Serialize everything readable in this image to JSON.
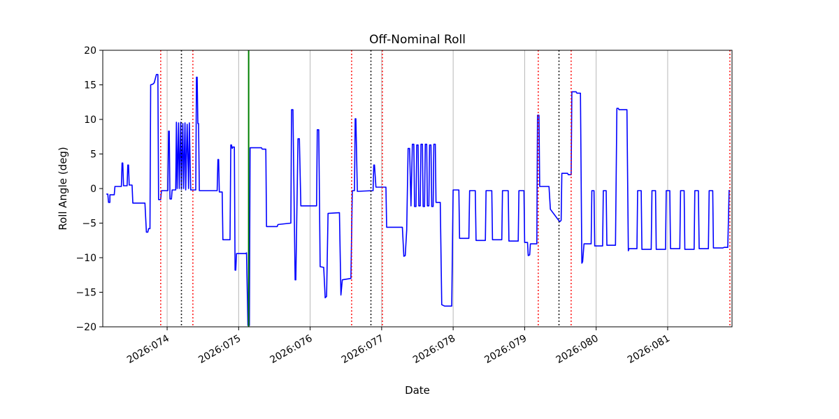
{
  "chart_data": {
    "type": "line",
    "title": "Off-Nominal Roll",
    "xlabel": "Date",
    "ylabel": "Roll Angle (deg)",
    "xlim": [
      73.1,
      81.9
    ],
    "ylim": [
      -20,
      20
    ],
    "grid": {
      "axis": "x",
      "color": "#b0b0b0"
    },
    "x_ticks": [
      {
        "value": 74,
        "label": "2026:074"
      },
      {
        "value": 75,
        "label": "2026:075"
      },
      {
        "value": 76,
        "label": "2026:076"
      },
      {
        "value": 77,
        "label": "2026:077"
      },
      {
        "value": 78,
        "label": "2026:078"
      },
      {
        "value": 79,
        "label": "2026:079"
      },
      {
        "value": 80,
        "label": "2026:080"
      },
      {
        "value": 81,
        "label": "2026:081"
      }
    ],
    "y_ticks": [
      {
        "value": -20,
        "label": "−20"
      },
      {
        "value": -15,
        "label": "−15"
      },
      {
        "value": -10,
        "label": "−10"
      },
      {
        "value": -5,
        "label": "−5"
      },
      {
        "value": 0,
        "label": "0"
      },
      {
        "value": 5,
        "label": "5"
      },
      {
        "value": 10,
        "label": "10"
      },
      {
        "value": 15,
        "label": "15"
      },
      {
        "value": 20,
        "label": "20"
      }
    ],
    "vlines": [
      {
        "x": 73.91,
        "color": "#ff0000",
        "style": "dotted",
        "name": "event-marker-red-1"
      },
      {
        "x": 74.2,
        "color": "#000000",
        "style": "dotted",
        "name": "event-marker-black-1"
      },
      {
        "x": 74.36,
        "color": "#ff0000",
        "style": "dotted",
        "name": "event-marker-red-2"
      },
      {
        "x": 75.14,
        "color": "#008000",
        "style": "solid",
        "name": "event-marker-green-1"
      },
      {
        "x": 76.58,
        "color": "#ff0000",
        "style": "dotted",
        "name": "event-marker-red-3"
      },
      {
        "x": 76.85,
        "color": "#000000",
        "style": "dotted",
        "name": "event-marker-black-2"
      },
      {
        "x": 77.01,
        "color": "#ff0000",
        "style": "dotted",
        "name": "event-marker-red-4"
      },
      {
        "x": 79.19,
        "color": "#ff0000",
        "style": "dotted",
        "name": "event-marker-red-5"
      },
      {
        "x": 79.48,
        "color": "#000000",
        "style": "dotted",
        "name": "event-marker-black-3"
      },
      {
        "x": 79.65,
        "color": "#ff0000",
        "style": "dotted",
        "name": "event-marker-red-6"
      },
      {
        "x": 81.87,
        "color": "#ff0000",
        "style": "dotted",
        "name": "event-marker-red-7"
      }
    ],
    "series": [
      {
        "name": "roll-angle",
        "color": "#0000ff",
        "style": "solid",
        "points": [
          [
            73.15,
            -0.8
          ],
          [
            73.17,
            -0.8
          ],
          [
            73.18,
            -2.0
          ],
          [
            73.2,
            -2.0
          ],
          [
            73.2,
            -0.9
          ],
          [
            73.26,
            -0.9
          ],
          [
            73.27,
            0.3
          ],
          [
            73.36,
            0.3
          ],
          [
            73.37,
            3.7
          ],
          [
            73.38,
            3.7
          ],
          [
            73.39,
            0.4
          ],
          [
            73.44,
            0.4
          ],
          [
            73.45,
            3.4
          ],
          [
            73.46,
            3.4
          ],
          [
            73.47,
            0.5
          ],
          [
            73.51,
            0.5
          ],
          [
            73.52,
            -2.1
          ],
          [
            73.69,
            -2.1
          ],
          [
            73.71,
            -6.3
          ],
          [
            73.73,
            -6.3
          ],
          [
            73.74,
            -5.8
          ],
          [
            73.76,
            -5.8
          ],
          [
            73.77,
            15.0
          ],
          [
            73.8,
            15.1
          ],
          [
            73.82,
            15.3
          ],
          [
            73.85,
            16.5
          ],
          [
            73.87,
            16.5
          ],
          [
            73.88,
            -1.6
          ],
          [
            73.91,
            -1.6
          ],
          [
            73.92,
            -0.3
          ],
          [
            74.01,
            -0.3
          ],
          [
            74.02,
            8.3
          ],
          [
            74.03,
            8.3
          ],
          [
            74.04,
            -1.5
          ],
          [
            74.06,
            -1.5
          ],
          [
            74.07,
            -0.2
          ],
          [
            74.12,
            -0.2
          ],
          [
            74.13,
            9.6
          ],
          [
            74.14,
            0.0
          ],
          [
            74.16,
            9.5
          ],
          [
            74.17,
            0.0
          ],
          [
            74.19,
            9.6
          ],
          [
            74.2,
            -0.1
          ],
          [
            74.22,
            9.4
          ],
          [
            74.23,
            0.0
          ],
          [
            74.25,
            9.5
          ],
          [
            74.26,
            -0.2
          ],
          [
            74.28,
            9.3
          ],
          [
            74.3,
            0.0
          ],
          [
            74.31,
            9.5
          ],
          [
            74.33,
            -0.2
          ],
          [
            74.4,
            -0.2
          ],
          [
            74.41,
            16.1
          ],
          [
            74.42,
            16.1
          ],
          [
            74.43,
            9.4
          ],
          [
            74.44,
            9.4
          ],
          [
            74.45,
            -0.3
          ],
          [
            74.7,
            -0.3
          ],
          [
            74.71,
            4.2
          ],
          [
            74.72,
            4.2
          ],
          [
            74.73,
            -0.5
          ],
          [
            74.77,
            -0.5
          ],
          [
            74.78,
            -7.4
          ],
          [
            74.88,
            -7.4
          ],
          [
            74.89,
            6.3
          ],
          [
            74.9,
            6.3
          ],
          [
            74.91,
            5.8
          ],
          [
            74.92,
            6.0
          ],
          [
            74.94,
            6.0
          ],
          [
            74.95,
            -11.8
          ],
          [
            74.96,
            -11.8
          ],
          [
            74.97,
            -9.4
          ],
          [
            75.1,
            -9.4
          ],
          [
            75.11,
            -9.3
          ],
          [
            75.13,
            -19.8
          ],
          [
            75.15,
            -19.8
          ],
          [
            75.16,
            5.9
          ],
          [
            75.32,
            5.9
          ],
          [
            75.33,
            5.7
          ],
          [
            75.38,
            5.7
          ],
          [
            75.39,
            -5.5
          ],
          [
            75.54,
            -5.5
          ],
          [
            75.55,
            -5.2
          ],
          [
            75.73,
            -5.0
          ],
          [
            75.74,
            11.4
          ],
          [
            75.76,
            11.4
          ],
          [
            75.79,
            -13.2
          ],
          [
            75.8,
            -13.2
          ],
          [
            75.83,
            7.2
          ],
          [
            75.85,
            7.2
          ],
          [
            75.87,
            -2.5
          ],
          [
            76.09,
            -2.5
          ],
          [
            76.1,
            8.5
          ],
          [
            76.12,
            8.5
          ],
          [
            76.14,
            -11.3
          ],
          [
            76.19,
            -11.4
          ],
          [
            76.21,
            -15.8
          ],
          [
            76.23,
            -15.6
          ],
          [
            76.25,
            -3.6
          ],
          [
            76.41,
            -3.5
          ],
          [
            76.43,
            -15.4
          ],
          [
            76.45,
            -13.2
          ],
          [
            76.57,
            -13.0
          ],
          [
            76.59,
            -0.3
          ],
          [
            76.62,
            -0.3
          ],
          [
            76.63,
            10.1
          ],
          [
            76.64,
            10.1
          ],
          [
            76.66,
            -0.4
          ],
          [
            76.88,
            -0.3
          ],
          [
            76.89,
            3.4
          ],
          [
            76.9,
            3.4
          ],
          [
            76.92,
            0.2
          ],
          [
            77.06,
            0.2
          ],
          [
            77.07,
            -5.6
          ],
          [
            77.29,
            -5.6
          ],
          [
            77.31,
            -9.8
          ],
          [
            77.33,
            -9.7
          ],
          [
            77.35,
            -6.0
          ],
          [
            77.37,
            5.8
          ],
          [
            77.39,
            5.8
          ],
          [
            77.41,
            -2.5
          ],
          [
            77.43,
            6.4
          ],
          [
            77.45,
            6.4
          ],
          [
            77.46,
            -2.6
          ],
          [
            77.48,
            -2.6
          ],
          [
            77.49,
            6.3
          ],
          [
            77.51,
            6.3
          ],
          [
            77.52,
            -2.5
          ],
          [
            77.54,
            -2.5
          ],
          [
            77.55,
            6.4
          ],
          [
            77.57,
            6.4
          ],
          [
            77.58,
            -2.6
          ],
          [
            77.6,
            -2.6
          ],
          [
            77.61,
            6.4
          ],
          [
            77.63,
            6.4
          ],
          [
            77.64,
            -2.5
          ],
          [
            77.66,
            -2.5
          ],
          [
            77.67,
            6.3
          ],
          [
            77.69,
            6.3
          ],
          [
            77.7,
            -2.6
          ],
          [
            77.72,
            -2.6
          ],
          [
            77.73,
            6.4
          ],
          [
            77.75,
            6.4
          ],
          [
            77.76,
            -2.0
          ],
          [
            77.82,
            -2.0
          ],
          [
            77.84,
            -16.8
          ],
          [
            77.88,
            -17.0
          ],
          [
            77.98,
            -17.0
          ],
          [
            78.0,
            -0.2
          ],
          [
            78.08,
            -0.2
          ],
          [
            78.09,
            -7.2
          ],
          [
            78.22,
            -7.2
          ],
          [
            78.23,
            -0.3
          ],
          [
            78.31,
            -0.3
          ],
          [
            78.32,
            -7.5
          ],
          [
            78.45,
            -7.5
          ],
          [
            78.46,
            -0.3
          ],
          [
            78.54,
            -0.3
          ],
          [
            78.55,
            -7.4
          ],
          [
            78.68,
            -7.4
          ],
          [
            78.69,
            -0.3
          ],
          [
            78.77,
            -0.3
          ],
          [
            78.78,
            -7.6
          ],
          [
            78.91,
            -7.6
          ],
          [
            78.92,
            -0.3
          ],
          [
            78.99,
            -0.3
          ],
          [
            79.0,
            -7.8
          ],
          [
            79.04,
            -7.8
          ],
          [
            79.05,
            -9.7
          ],
          [
            79.07,
            -9.6
          ],
          [
            79.08,
            -8.0
          ],
          [
            79.17,
            -8.0
          ],
          [
            79.18,
            10.6
          ],
          [
            79.2,
            10.6
          ],
          [
            79.21,
            0.3
          ],
          [
            79.34,
            0.3
          ],
          [
            79.36,
            -3.0
          ],
          [
            79.49,
            -4.8
          ],
          [
            79.51,
            -4.6
          ],
          [
            79.52,
            2.2
          ],
          [
            79.6,
            2.2
          ],
          [
            79.61,
            2.0
          ],
          [
            79.65,
            2.0
          ],
          [
            79.66,
            14.0
          ],
          [
            79.72,
            14.0
          ],
          [
            79.73,
            13.8
          ],
          [
            79.78,
            13.8
          ],
          [
            79.8,
            -10.8
          ],
          [
            79.81,
            -10.6
          ],
          [
            79.83,
            -8.0
          ],
          [
            79.93,
            -8.0
          ],
          [
            79.94,
            -0.3
          ],
          [
            79.97,
            -0.3
          ],
          [
            79.98,
            -8.3
          ],
          [
            80.09,
            -8.3
          ],
          [
            80.1,
            -0.3
          ],
          [
            80.14,
            -0.3
          ],
          [
            80.15,
            -8.2
          ],
          [
            80.27,
            -8.2
          ],
          [
            80.29,
            11.6
          ],
          [
            80.31,
            11.6
          ],
          [
            80.32,
            11.4
          ],
          [
            80.43,
            11.4
          ],
          [
            80.45,
            -9.0
          ],
          [
            80.46,
            -8.7
          ],
          [
            80.57,
            -8.7
          ],
          [
            80.58,
            -0.3
          ],
          [
            80.63,
            -0.3
          ],
          [
            80.64,
            -8.8
          ],
          [
            80.77,
            -8.8
          ],
          [
            80.78,
            -0.3
          ],
          [
            80.83,
            -0.3
          ],
          [
            80.84,
            -8.8
          ],
          [
            80.97,
            -8.8
          ],
          [
            80.98,
            -0.3
          ],
          [
            81.03,
            -0.3
          ],
          [
            81.04,
            -8.7
          ],
          [
            81.17,
            -8.7
          ],
          [
            81.18,
            -0.3
          ],
          [
            81.23,
            -0.3
          ],
          [
            81.24,
            -8.8
          ],
          [
            81.37,
            -8.8
          ],
          [
            81.38,
            -0.3
          ],
          [
            81.43,
            -0.3
          ],
          [
            81.44,
            -8.7
          ],
          [
            81.57,
            -8.7
          ],
          [
            81.58,
            -0.3
          ],
          [
            81.63,
            -0.3
          ],
          [
            81.64,
            -8.6
          ],
          [
            81.77,
            -8.6
          ],
          [
            81.79,
            -8.5
          ],
          [
            81.84,
            -8.5
          ],
          [
            81.86,
            -0.2
          ]
        ]
      }
    ]
  }
}
